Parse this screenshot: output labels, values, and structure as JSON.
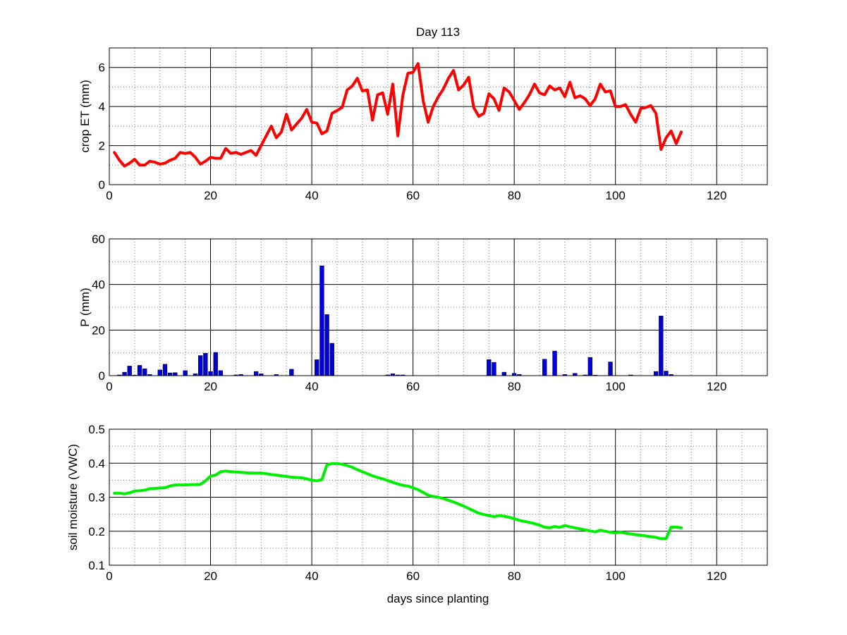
{
  "title": "Day 113",
  "xlabel": "days since planting",
  "colors": {
    "et": "#ff0000",
    "precip": "#0000dd",
    "soil": "#00ee00",
    "major_grid": "#000000",
    "minor_grid": "#777777"
  },
  "chart_data": [
    {
      "type": "line",
      "title": "Day 113",
      "ylabel": "crop ET (mm)",
      "xlim": [
        0,
        130
      ],
      "ylim": [
        0,
        7
      ],
      "xticks": [
        0,
        20,
        40,
        60,
        80,
        100,
        120
      ],
      "xtick_labels": [
        "0",
        "20",
        "40",
        "60",
        "80",
        "100",
        "120"
      ],
      "yticks": [
        0,
        2,
        4,
        6
      ],
      "ytick_labels": [
        "0",
        "2",
        "4",
        "6"
      ],
      "grid": true,
      "series": [
        {
          "color": "#ff0000",
          "x": [
            1,
            2,
            3,
            4,
            5,
            6,
            7,
            8,
            9,
            10,
            11,
            12,
            13,
            14,
            15,
            16,
            17,
            18,
            19,
            20,
            21,
            22,
            23,
            24,
            25,
            26,
            27,
            28,
            29,
            30,
            31,
            32,
            33,
            34,
            35,
            36,
            37,
            38,
            39,
            40,
            41,
            42,
            43,
            44,
            45,
            46,
            47,
            48,
            49,
            50,
            51,
            52,
            53,
            54,
            55,
            56,
            57,
            58,
            59,
            60,
            61,
            62,
            63,
            64,
            65,
            66,
            67,
            68,
            69,
            70,
            71,
            72,
            73,
            74,
            75,
            76,
            77,
            78,
            79,
            80,
            81,
            82,
            83,
            84,
            85,
            86,
            87,
            88,
            89,
            90,
            91,
            92,
            93,
            94,
            95,
            96,
            97,
            98,
            99,
            100,
            101,
            102,
            103,
            104,
            105,
            106,
            107,
            108,
            109,
            110,
            111,
            112,
            113
          ],
          "y": [
            1.65,
            1.25,
            0.95,
            1.1,
            1.3,
            1.0,
            1.0,
            1.2,
            1.15,
            1.05,
            1.1,
            1.25,
            1.35,
            1.65,
            1.6,
            1.65,
            1.4,
            1.05,
            1.2,
            1.4,
            1.35,
            1.35,
            1.85,
            1.6,
            1.65,
            1.55,
            1.65,
            1.75,
            1.5,
            2.0,
            2.5,
            3.0,
            2.4,
            2.7,
            3.6,
            2.8,
            3.1,
            3.4,
            3.85,
            3.2,
            3.15,
            2.6,
            2.75,
            3.65,
            3.8,
            3.95,
            4.85,
            5.05,
            5.45,
            4.8,
            4.85,
            3.3,
            4.6,
            4.7,
            3.6,
            5.15,
            2.5,
            4.6,
            5.7,
            5.75,
            6.2,
            4.3,
            3.2,
            4.0,
            4.5,
            4.9,
            5.45,
            5.85,
            4.85,
            5.1,
            5.5,
            3.95,
            3.5,
            3.65,
            4.65,
            4.4,
            3.8,
            4.95,
            4.75,
            4.3,
            3.85,
            4.2,
            4.6,
            5.15,
            4.7,
            4.6,
            5.05,
            4.85,
            4.95,
            4.5,
            5.25,
            4.45,
            4.55,
            4.4,
            4.05,
            4.4,
            5.15,
            4.75,
            4.8,
            4.0,
            4.0,
            4.1,
            3.6,
            3.2,
            3.9,
            3.95,
            4.05,
            3.65,
            1.8,
            2.4,
            2.75,
            2.1,
            2.7
          ]
        }
      ]
    },
    {
      "type": "bar",
      "ylabel": "P (mm)",
      "xlim": [
        0,
        130
      ],
      "ylim": [
        0,
        60
      ],
      "xticks": [
        0,
        20,
        40,
        60,
        80,
        100,
        120
      ],
      "xtick_labels": [
        "0",
        "20",
        "40",
        "60",
        "80",
        "100",
        "120"
      ],
      "yticks": [
        0,
        20,
        40,
        60
      ],
      "ytick_labels": [
        "0",
        "20",
        "40",
        "60"
      ],
      "grid": true,
      "series": [
        {
          "color": "#0000dd",
          "x": [
            2,
            3,
            4,
            5,
            6,
            7,
            8,
            10,
            11,
            12,
            13,
            15,
            17,
            18,
            19,
            20,
            21,
            22,
            25,
            26,
            29,
            30,
            33,
            36,
            41,
            42,
            43,
            44,
            55,
            56,
            57,
            58,
            75,
            76,
            78,
            80,
            81,
            86,
            88,
            90,
            92,
            94,
            95,
            96,
            99,
            103,
            108,
            109,
            110,
            111
          ],
          "values": [
            0.3,
            1.5,
            4.2,
            0.2,
            4.5,
            3.0,
            0.5,
            2.5,
            5.0,
            1.2,
            1.3,
            2.2,
            0.8,
            8.8,
            9.8,
            1.8,
            10.2,
            2.2,
            0.3,
            0.5,
            1.8,
            0.8,
            0.5,
            2.8,
            7.0,
            48.2,
            26.8,
            14.2,
            0.3,
            0.8,
            0.3,
            0.3,
            7.0,
            5.8,
            1.5,
            1.0,
            0.5,
            7.2,
            10.8,
            0.5,
            1.0,
            0.3,
            8.0,
            0.2,
            6.0,
            0.3,
            1.8,
            26.2,
            2.0,
            0.5
          ]
        }
      ]
    },
    {
      "type": "line",
      "ylabel": "soil moisture (VWC)",
      "xlabel": "days since planting",
      "xlim": [
        0,
        130
      ],
      "ylim": [
        0.1,
        0.5
      ],
      "xticks": [
        0,
        20,
        40,
        60,
        80,
        100,
        120
      ],
      "xtick_labels": [
        "0",
        "20",
        "40",
        "60",
        "80",
        "100",
        "120"
      ],
      "yticks": [
        0.1,
        0.2,
        0.3,
        0.4,
        0.5
      ],
      "ytick_labels": [
        "0.1",
        "0.2",
        "0.3",
        "0.4",
        "0.5"
      ],
      "grid": true,
      "series": [
        {
          "color": "#00ee00",
          "x": [
            1,
            2,
            3,
            4,
            5,
            6,
            7,
            8,
            9,
            10,
            11,
            12,
            13,
            14,
            15,
            16,
            17,
            18,
            19,
            20,
            21,
            22,
            23,
            24,
            25,
            26,
            27,
            28,
            29,
            30,
            31,
            32,
            33,
            34,
            35,
            36,
            37,
            38,
            39,
            40,
            41,
            42,
            43,
            44,
            45,
            46,
            47,
            48,
            49,
            50,
            51,
            52,
            53,
            54,
            55,
            56,
            57,
            58,
            59,
            60,
            61,
            62,
            63,
            64,
            65,
            66,
            67,
            68,
            69,
            70,
            71,
            72,
            73,
            74,
            75,
            76,
            77,
            78,
            79,
            80,
            81,
            82,
            83,
            84,
            85,
            86,
            87,
            88,
            89,
            90,
            91,
            92,
            93,
            94,
            95,
            96,
            97,
            98,
            99,
            100,
            101,
            102,
            103,
            104,
            105,
            106,
            107,
            108,
            109,
            110,
            111,
            112,
            113
          ],
          "y": [
            0.312,
            0.312,
            0.31,
            0.313,
            0.318,
            0.319,
            0.321,
            0.325,
            0.326,
            0.327,
            0.328,
            0.333,
            0.336,
            0.336,
            0.336,
            0.337,
            0.337,
            0.338,
            0.348,
            0.362,
            0.365,
            0.375,
            0.377,
            0.375,
            0.374,
            0.373,
            0.372,
            0.371,
            0.371,
            0.371,
            0.369,
            0.367,
            0.365,
            0.363,
            0.361,
            0.359,
            0.358,
            0.357,
            0.354,
            0.35,
            0.348,
            0.352,
            0.395,
            0.399,
            0.399,
            0.397,
            0.393,
            0.388,
            0.381,
            0.375,
            0.369,
            0.363,
            0.358,
            0.354,
            0.349,
            0.344,
            0.339,
            0.335,
            0.333,
            0.328,
            0.322,
            0.314,
            0.306,
            0.302,
            0.3,
            0.296,
            0.291,
            0.286,
            0.28,
            0.274,
            0.267,
            0.26,
            0.253,
            0.249,
            0.246,
            0.243,
            0.246,
            0.244,
            0.241,
            0.237,
            0.232,
            0.229,
            0.226,
            0.222,
            0.218,
            0.212,
            0.21,
            0.214,
            0.211,
            0.217,
            0.213,
            0.21,
            0.207,
            0.204,
            0.201,
            0.198,
            0.203,
            0.2,
            0.197,
            0.195,
            0.197,
            0.194,
            0.192,
            0.19,
            0.188,
            0.186,
            0.184,
            0.182,
            0.178,
            0.178,
            0.212,
            0.212,
            0.21
          ]
        }
      ]
    }
  ]
}
